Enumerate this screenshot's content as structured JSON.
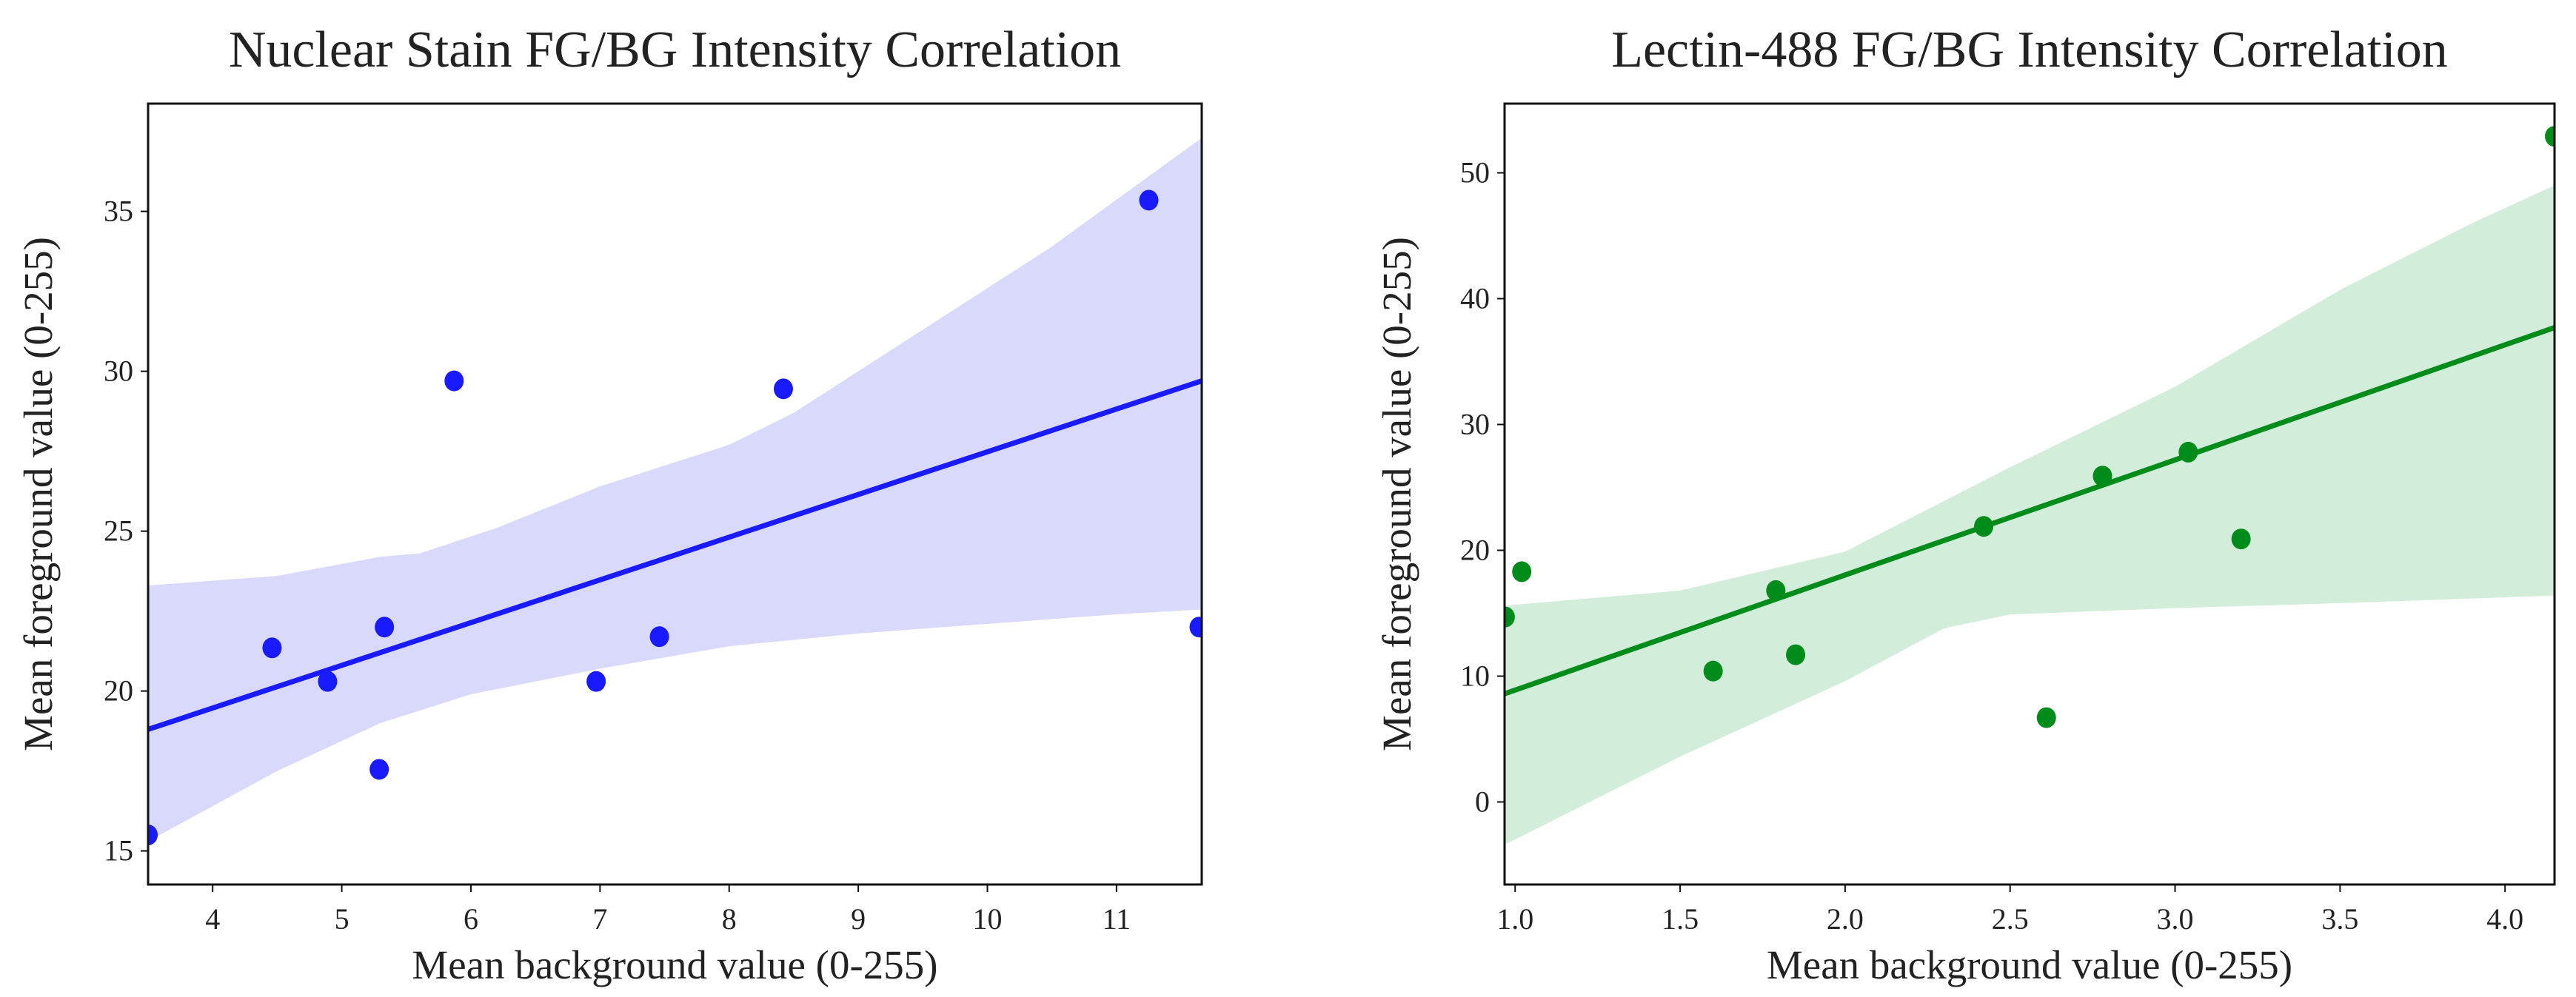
{
  "chart_data": [
    {
      "type": "scatter",
      "title": "Nuclear Stain FG/BG Intensity Correlation",
      "xlabel": "Mean background value (0-255)",
      "ylabel": "Mean foreground value (0-255)",
      "xlim": [
        3.5,
        11.66
      ],
      "ylim": [
        13.95,
        38.37
      ],
      "xticks": [
        4,
        5,
        6,
        7,
        8,
        9,
        10,
        11
      ],
      "yticks": [
        15,
        20,
        25,
        30,
        35
      ],
      "color": "#1a1aff",
      "band_color": "#d9d9fb",
      "points": [
        [
          3.5,
          15.5
        ],
        [
          4.46,
          21.35
        ],
        [
          4.89,
          20.3
        ],
        [
          5.33,
          22.0
        ],
        [
          5.29,
          17.55
        ],
        [
          5.87,
          29.7
        ],
        [
          6.97,
          20.3
        ],
        [
          7.46,
          21.7
        ],
        [
          8.42,
          29.45
        ],
        [
          11.25,
          35.35
        ],
        [
          11.64,
          22.0
        ]
      ],
      "regression_line": [
        [
          3.5,
          18.8
        ],
        [
          11.66,
          29.7
        ]
      ],
      "ci_upper": [
        [
          3.5,
          23.3
        ],
        [
          4.5,
          23.6
        ],
        [
          5.3,
          24.2
        ],
        [
          5.6,
          24.3
        ],
        [
          6.2,
          25.1
        ],
        [
          7,
          26.4
        ],
        [
          8,
          27.7
        ],
        [
          8.5,
          28.7
        ],
        [
          9.5,
          31.3
        ],
        [
          10.5,
          33.9
        ],
        [
          11.66,
          37.3
        ]
      ],
      "ci_lower": [
        [
          3.5,
          15.3
        ],
        [
          4.5,
          17.5
        ],
        [
          5.3,
          19.0
        ],
        [
          6,
          19.9
        ],
        [
          7,
          20.7
        ],
        [
          8,
          21.4
        ],
        [
          9,
          21.8
        ],
        [
          10,
          22.1
        ],
        [
          11,
          22.4
        ],
        [
          11.66,
          22.55
        ]
      ]
    },
    {
      "type": "scatter",
      "title": "Lectin-488 FG/BG Intensity Correlation",
      "xlabel": "Mean background value (0-255)",
      "ylabel": "Mean foreground value (0-255)",
      "xlim": [
        0.968,
        4.15
      ],
      "ylim": [
        -6.56,
        55.5
      ],
      "xticks": [
        "1.0",
        "1.5",
        "2.0",
        "2.5",
        "3.0",
        "3.5",
        "4.0"
      ],
      "yticks": [
        0,
        10,
        20,
        30,
        40,
        50
      ],
      "color": "#008c1a",
      "band_color": "#d3eddb",
      "points": [
        [
          0.97,
          14.7
        ],
        [
          1.02,
          18.3
        ],
        [
          1.6,
          10.4
        ],
        [
          1.79,
          16.8
        ],
        [
          1.85,
          11.7
        ],
        [
          2.42,
          21.9
        ],
        [
          2.61,
          6.7
        ],
        [
          2.78,
          25.9
        ],
        [
          3.04,
          27.8
        ],
        [
          3.2,
          20.9
        ],
        [
          4.15,
          52.9
        ]
      ],
      "regression_line": [
        [
          0.968,
          8.6
        ],
        [
          4.15,
          37.7
        ]
      ],
      "ci_upper": [
        [
          0.968,
          15.6
        ],
        [
          1.5,
          16.8
        ],
        [
          2.0,
          19.9
        ],
        [
          2.5,
          26.6
        ],
        [
          3.0,
          33.0
        ],
        [
          3.5,
          40.7
        ],
        [
          3.9,
          46.0
        ],
        [
          4.15,
          49.0
        ]
      ],
      "ci_lower": [
        [
          0.968,
          -3.4
        ],
        [
          1.5,
          3.6
        ],
        [
          2.0,
          9.6
        ],
        [
          2.3,
          13.8
        ],
        [
          2.5,
          14.9
        ],
        [
          3.0,
          15.4
        ],
        [
          3.5,
          15.8
        ],
        [
          4.15,
          16.4
        ]
      ]
    }
  ]
}
